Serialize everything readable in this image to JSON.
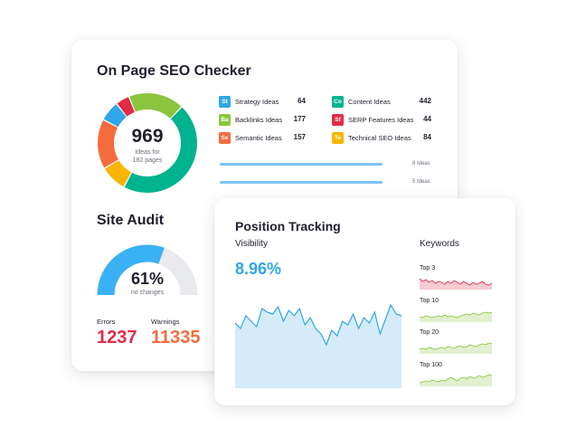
{
  "seo_checker": {
    "title": "On Page SEO Checker",
    "donut": {
      "value": "969",
      "caption_line1": "Ideas for",
      "caption_line2": "182 pages"
    },
    "ideas": [
      {
        "abbr": "St",
        "label": "Strategy Ideas",
        "count": "64",
        "color": "#2ea6e9"
      },
      {
        "abbr": "Ba",
        "label": "Backlinks Ideas",
        "count": "177",
        "color": "#8bc53f"
      },
      {
        "abbr": "Se",
        "label": "Semantic Ideas",
        "count": "157",
        "color": "#f46c3c"
      },
      {
        "abbr": "Co",
        "label": "Content Ideas",
        "count": "442",
        "color": "#00b38f"
      },
      {
        "abbr": "Sf",
        "label": "SERP Features Ideas",
        "count": "44",
        "color": "#e12b48"
      },
      {
        "abbr": "Te",
        "label": "Technical SEO Ideas",
        "count": "84",
        "color": "#f8b500"
      }
    ],
    "bars": [
      {
        "note": "8 Ideas",
        "fill": 1.0
      },
      {
        "note": "5 Ideas",
        "fill": 1.0
      }
    ]
  },
  "site_audit": {
    "title": "Site Audit",
    "gauge": {
      "value": "61%",
      "caption": "no changes",
      "level": 0.61
    },
    "errors": {
      "label": "Errors",
      "value": "1237",
      "color": "#e12b48"
    },
    "warnings": {
      "label": "Warnings",
      "value": "11335",
      "color": "#f46c3c"
    }
  },
  "position_tracking": {
    "title": "Position Tracking",
    "visibility": {
      "label": "Visibility",
      "value": "8.96%"
    },
    "keywords": {
      "label": "Keywords",
      "rows": [
        {
          "label": "Top 3",
          "color": "#e12b48"
        },
        {
          "label": "Top 10",
          "color": "#8bc53f"
        },
        {
          "label": "Top 20",
          "color": "#8bc53f"
        },
        {
          "label": "Top 100",
          "color": "#8bc53f"
        }
      ]
    }
  },
  "colors": {
    "blue": "#2ea6e9",
    "green": "#00b38f",
    "light_green": "#8bc53f",
    "yellow": "#f8b500",
    "orange": "#f46c3c",
    "red": "#e12b48",
    "gauge_blue": "#3ab1f6",
    "gauge_grey": "#e8eaee"
  }
}
